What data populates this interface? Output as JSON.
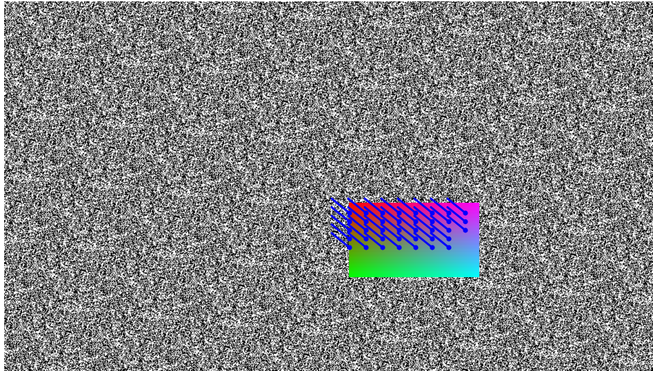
{
  "scene": {
    "background_color": "#ffffff",
    "noise": {
      "dark_color": "#000000",
      "light_color": "#ffffff",
      "light_fraction": 0.5
    },
    "gradient_corners": {
      "top_left": "#ff0000",
      "top_right": "#ff00ff",
      "bottom_left": "#00ff00",
      "bottom_right": "#00ffff"
    },
    "arrow_color": "#0000ff",
    "arrow_rows": 5,
    "arrow_columns": 8
  }
}
